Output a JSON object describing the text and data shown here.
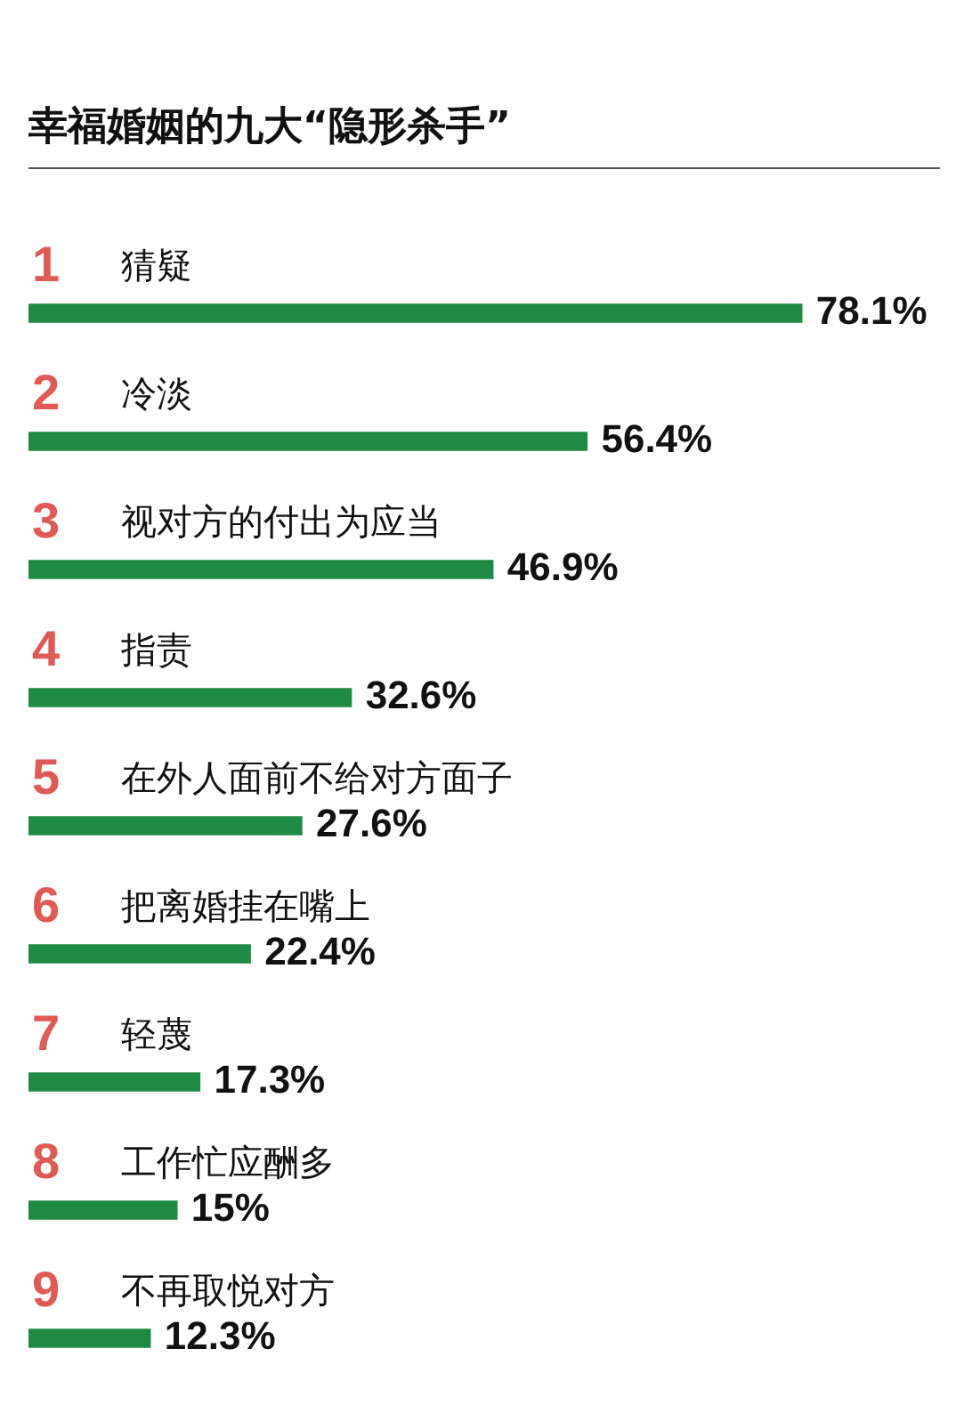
{
  "chart_data": {
    "type": "bar",
    "orientation": "horizontal",
    "title": "幸福婚姻的九大“隐形杀手”",
    "categories": [
      "猜疑",
      "冷淡",
      "视对方的付出为应当",
      "指责",
      "在外人面前不给对方面子",
      "把离婚挂在嘴上",
      "轻蔑",
      "工作忙应酬多",
      "不再取悦对方"
    ],
    "values": [
      78.1,
      56.4,
      46.9,
      32.6,
      27.6,
      22.4,
      17.3,
      15,
      12.3
    ],
    "value_labels": [
      "78.1%",
      "56.4%",
      "46.9%",
      "32.6%",
      "27.6%",
      "22.4%",
      "17.3%",
      "15%",
      "12.3%"
    ],
    "color": "#1e8a43",
    "annotations": [
      {
        "text": "1",
        "y": "猜疑"
      },
      {
        "text": "2",
        "y": "冷淡"
      },
      {
        "text": "3",
        "y": "视对方的付出为应当"
      },
      {
        "text": "4",
        "y": "指责"
      },
      {
        "text": "5",
        "y": "在外人面前不给对方面子"
      },
      {
        "text": "6",
        "y": "把离婚挂在嘴上"
      },
      {
        "text": "7",
        "y": "轻蔑"
      },
      {
        "text": "8",
        "y": "工作忙应酬多"
      },
      {
        "text": "9",
        "y": "不再取悦对方"
      }
    ],
    "legend": false
  }
}
